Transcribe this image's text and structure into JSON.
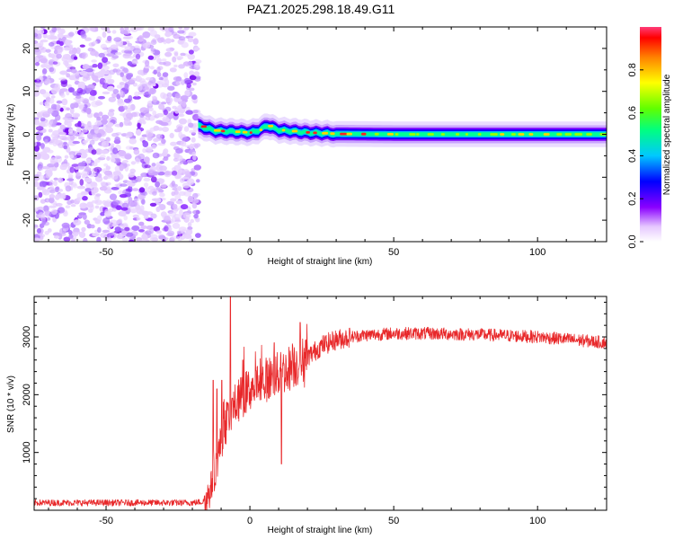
{
  "title": "PAZ1.2025.298.18.49.G11",
  "chart_data": [
    {
      "type": "heatmap",
      "name": "spectrogram",
      "xlabel": "Height of straight line (km)",
      "ylabel": "Frequency (Hz)",
      "xlim": [
        -75,
        124
      ],
      "ylim": [
        -25,
        25
      ],
      "xticks": [
        -50,
        0,
        50,
        100
      ],
      "yticks": [
        -20,
        -10,
        0,
        10,
        20
      ],
      "noise_region_x": [
        -75,
        -18
      ],
      "signal_start_x": -18,
      "colorbar": {
        "label": "Normalized spectral amplitude",
        "range": [
          0,
          1
        ],
        "ticks": [
          0.0,
          0.2,
          0.4,
          0.6,
          0.8
        ],
        "tick_labels": [
          "0.0",
          "0.2",
          "0.4",
          "0.6",
          "0.8"
        ]
      },
      "signal_track": {
        "x": [
          -18,
          -12,
          -5,
          0,
          3,
          6,
          10,
          15,
          20,
          30,
          50,
          80,
          100,
          124
        ],
        "y": [
          2.0,
          0.8,
          0.6,
          0.4,
          0.9,
          2.0,
          1.0,
          0.7,
          0.4,
          0.1,
          0.0,
          0.0,
          0.0,
          0.0
        ]
      }
    },
    {
      "type": "line",
      "name": "snr",
      "xlabel": "Height of straight line (km)",
      "ylabel": "SNR (10 * v/v)",
      "xlim": [
        -75,
        124
      ],
      "ylim": [
        0,
        3700
      ],
      "xticks": [
        -50,
        0,
        50,
        100
      ],
      "yticks": [
        1000,
        2000,
        3000
      ],
      "color": "#e8282a",
      "profile": {
        "x": [
          -75,
          -20,
          -16,
          -14,
          -12,
          -10,
          -7,
          -4,
          0,
          5,
          10,
          15,
          20,
          25,
          30,
          35,
          40,
          50,
          60,
          70,
          80,
          90,
          100,
          110,
          124
        ],
        "y": [
          130,
          130,
          150,
          300,
          700,
          1200,
          1700,
          1900,
          2100,
          2250,
          2350,
          2500,
          2650,
          2850,
          2950,
          3000,
          3030,
          3060,
          3060,
          3050,
          3040,
          3020,
          3000,
          2960,
          2900
        ]
      },
      "spikes": [
        {
          "x": -12.8,
          "y": 2250
        },
        {
          "x": -11.5,
          "y": 2100
        },
        {
          "x": -9.8,
          "y": 2250
        },
        {
          "x": -6.8,
          "y": 3700
        },
        {
          "x": -2.5,
          "y": 2600
        },
        {
          "x": 8.5,
          "y": 2900
        },
        {
          "x": 11.0,
          "y": 800
        },
        {
          "x": 17.5,
          "y": 3250
        }
      ]
    }
  ]
}
